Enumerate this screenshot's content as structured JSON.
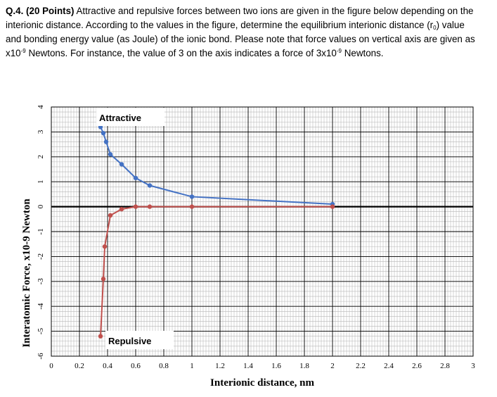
{
  "question": {
    "number": "Q.4.",
    "points": "(20 Points)",
    "line1_rest": " Attractive and repulsive forces between two ions are given in the figure below depending on the",
    "line2": "interionic distance.   According to the values in the figure, determine the equilibrium interionic distance (r",
    "r_sub": "0",
    "line2_end": ") value",
    "line3": "and bonding energy value (as Joule) of the ionic bond. Please note that force values on vertical axis are given as",
    "line4_a": "x10",
    "exp1": "-9",
    "line4_b": " Newtons. For instance, the value of 3 on the axis indicates a force of 3x10",
    "exp2": "-9",
    "line4_c": " Newtons."
  },
  "chart_data": {
    "type": "line",
    "xlabel": "Interionic distance, nm",
    "ylabel": "Interatomic Force, x10-9 Newton",
    "xlim": [
      0,
      3
    ],
    "ylim": [
      -6,
      4
    ],
    "x_ticks": [
      "0",
      "0.2",
      "0.4",
      "0.6",
      "0.8",
      "1",
      "1.2",
      "1.4",
      "1.6",
      "1.8",
      "2",
      "2.2",
      "2.4",
      "2.6",
      "2.8",
      "3"
    ],
    "y_ticks": [
      "4",
      "3",
      "2",
      "1",
      "0",
      "-1",
      "-2",
      "-3",
      "-4",
      "-5",
      "-6"
    ],
    "grid": true,
    "series": [
      {
        "name": "Attractive",
        "color": "#4472C4",
        "x": [
          0.35,
          0.37,
          0.39,
          0.42,
          0.5,
          0.6,
          0.7,
          1.0,
          2.0
        ],
        "y": [
          3.2,
          2.95,
          2.6,
          2.1,
          1.7,
          1.15,
          0.85,
          0.4,
          0.1
        ]
      },
      {
        "name": "Repulsive",
        "color": "#C0504D",
        "x": [
          0.35,
          0.37,
          0.38,
          0.42,
          0.5,
          0.6,
          0.7,
          1.0,
          2.0
        ],
        "y": [
          -5.2,
          -2.9,
          -1.6,
          -0.35,
          -0.1,
          0.0,
          0.0,
          0.0,
          0.0
        ]
      }
    ]
  }
}
